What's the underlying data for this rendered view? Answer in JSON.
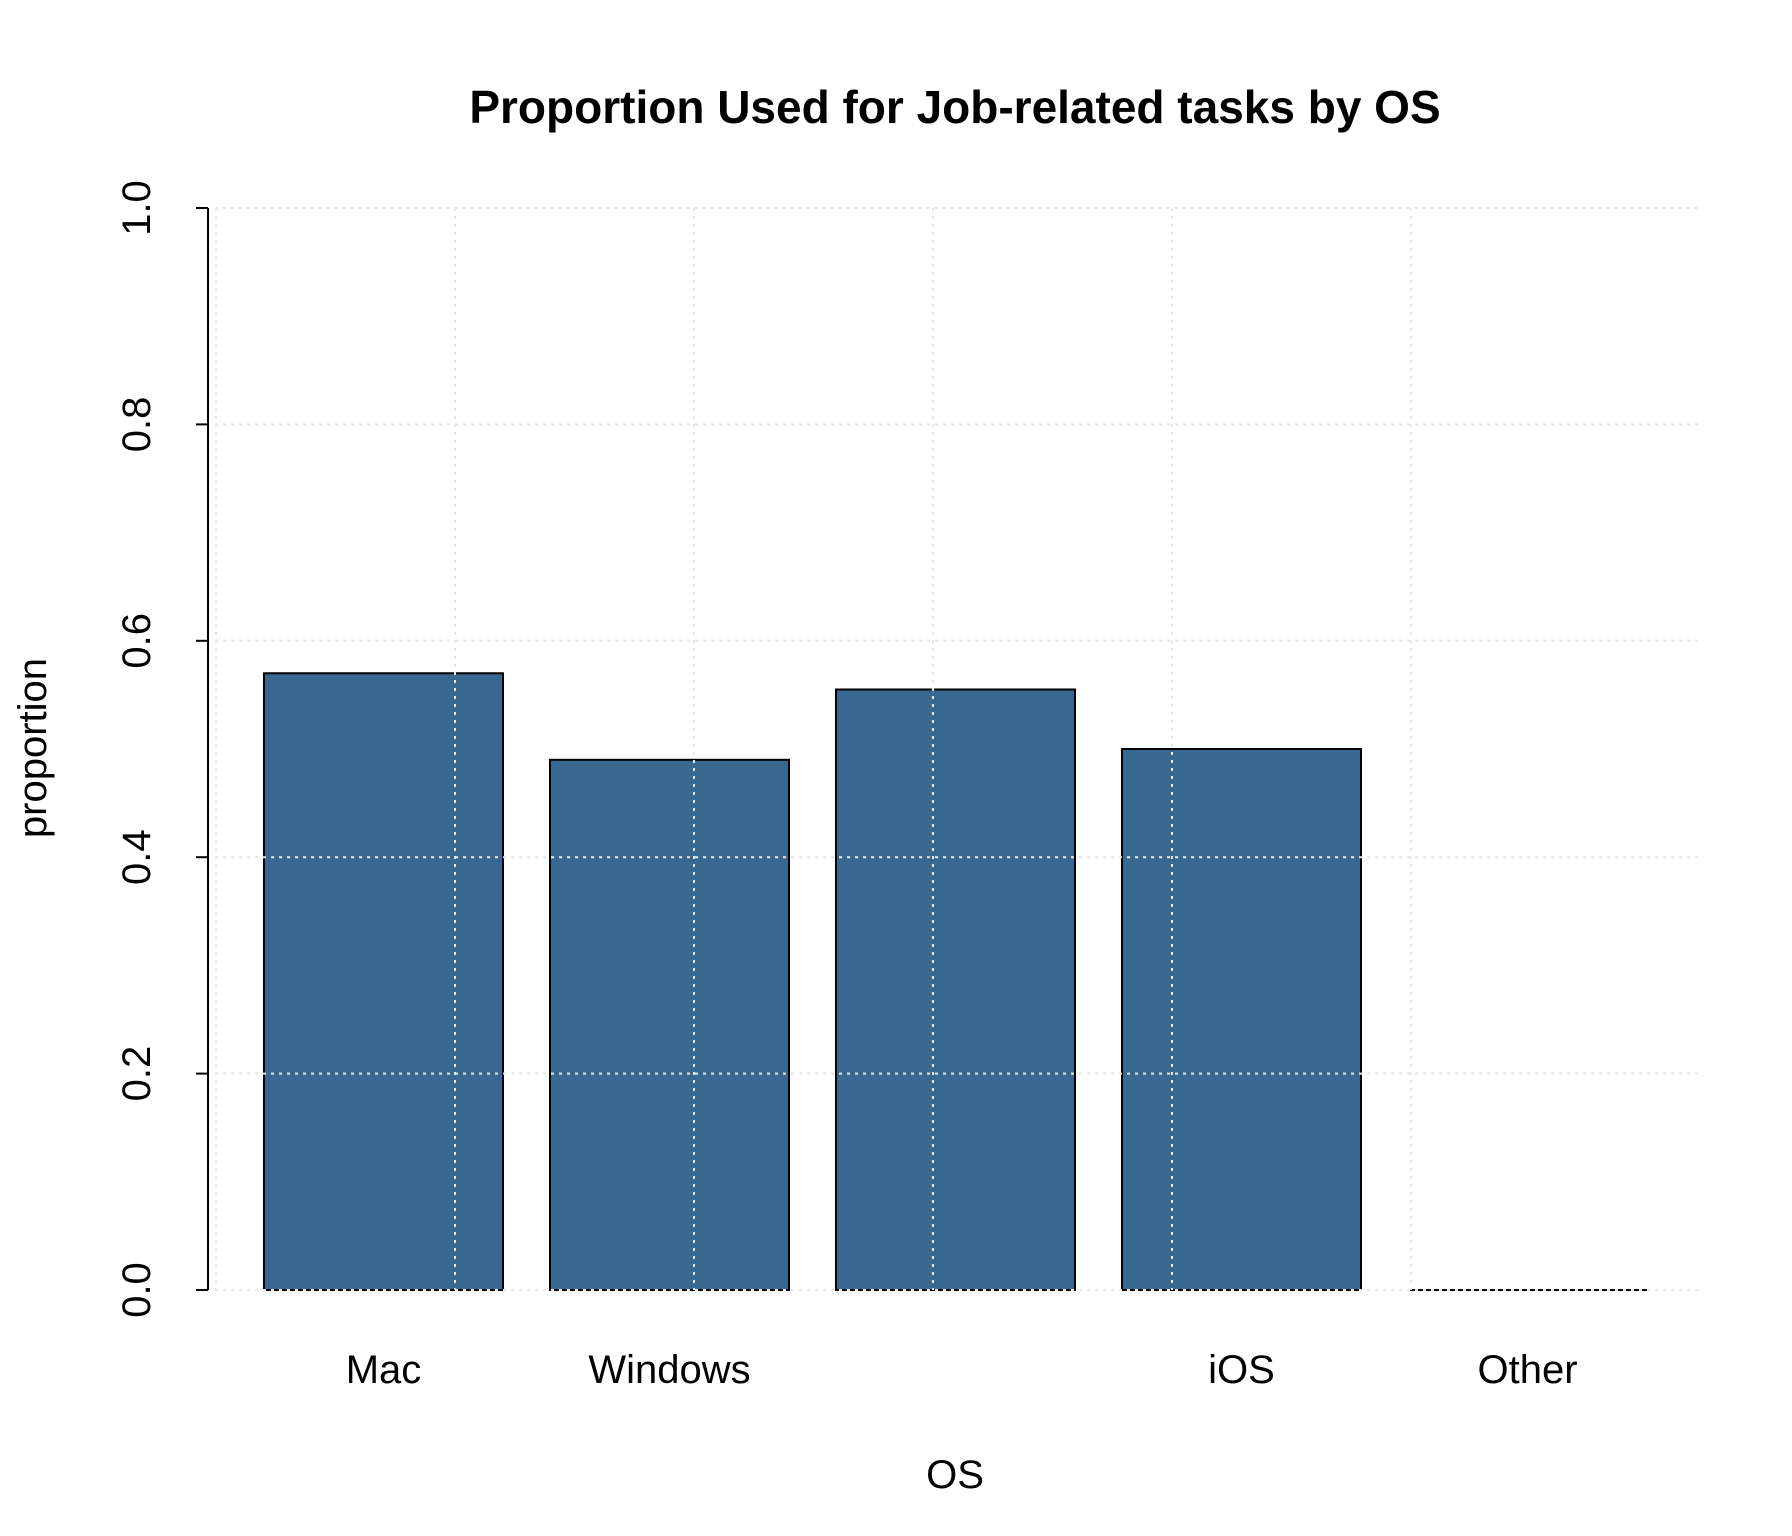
{
  "chart_data": {
    "type": "bar",
    "title": "Proportion Used for Job-related tasks by OS",
    "xlabel": "OS",
    "ylabel": "proportion",
    "categories": [
      "Mac",
      "Windows",
      "",
      "iOS",
      "Other"
    ],
    "values": [
      0.57,
      0.49,
      0.555,
      0.5,
      0.0
    ],
    "ylim": [
      0,
      1
    ],
    "yticks": [
      "0.0",
      "0.2",
      "0.4",
      "0.6",
      "0.8",
      "1.0"
    ],
    "grid": true,
    "bar_color": "#386890",
    "legend": "none"
  }
}
